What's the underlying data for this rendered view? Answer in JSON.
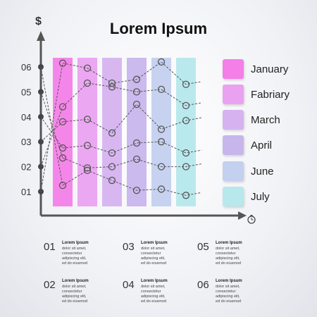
{
  "title": "Lorem Ipsum",
  "axis_symbol": "$",
  "chart_data": {
    "type": "line",
    "title": "Lorem Ipsum",
    "ylabel": "$",
    "y_ticks": [
      "01",
      "02",
      "03",
      "04",
      "05",
      "06"
    ],
    "ylim": [
      0.6,
      6.6
    ],
    "bars": [
      {
        "name": "January",
        "color": "#f47fe8"
      },
      {
        "name": "Fabriary",
        "color": "#eaa2f0"
      },
      {
        "name": "March",
        "color": "#d6b3f0"
      },
      {
        "name": "April",
        "color": "#c7b6ec"
      },
      {
        "name": "June",
        "color": "#c4d0ef"
      },
      {
        "name": "July",
        "color": "#b6e8ec"
      }
    ],
    "series": [
      {
        "values": [
          6.15,
          5.95,
          5.35,
          5.5,
          6.2,
          5.3
        ]
      },
      {
        "values": [
          4.4,
          5.35,
          5.2,
          5.0,
          5.1,
          4.45
        ]
      },
      {
        "values": [
          3.8,
          3.9,
          3.35,
          4.5,
          3.5,
          3.85
        ]
      },
      {
        "values": [
          2.75,
          2.85,
          2.55,
          2.95,
          3.0,
          2.55
        ]
      },
      {
        "values": [
          2.35,
          1.95,
          2.0,
          2.3,
          2.0,
          2.0
        ]
      },
      {
        "values": [
          1.25,
          1.85,
          1.45,
          1.05,
          1.1,
          0.85
        ]
      }
    ]
  },
  "info": [
    {
      "num": "01",
      "title": "Lorem Ipsum",
      "body": [
        "dolor sit amet,",
        "consectetur",
        "adipiscing elit,",
        "ed do eiusmod"
      ]
    },
    {
      "num": "03",
      "title": "Lorem Ipsum",
      "body": [
        "dolor sit amet,",
        "consectetur",
        "adipiscing elit,",
        "ed do eiusmod"
      ]
    },
    {
      "num": "05",
      "title": "Lorem Ipsum",
      "body": [
        "dolor sit amet,",
        "consectetur",
        "adipiscing elit,",
        "ed do eiusmod"
      ]
    },
    {
      "num": "02",
      "title": "Lorem Ipsum",
      "body": [
        "dolor sit amet,",
        "consectetur",
        "adipiscing elit,",
        "ed do eiusmod"
      ]
    },
    {
      "num": "04",
      "title": "Lorem Ipsum",
      "body": [
        "dolor sit amet,",
        "consectetur",
        "adipiscing elit,",
        "ed do eiusmod"
      ]
    },
    {
      "num": "06",
      "title": "Lorem Ipsum",
      "body": [
        "dolor sit amet,",
        "consectetur",
        "adipiscing elit,",
        "ed do eiusmod"
      ]
    }
  ]
}
